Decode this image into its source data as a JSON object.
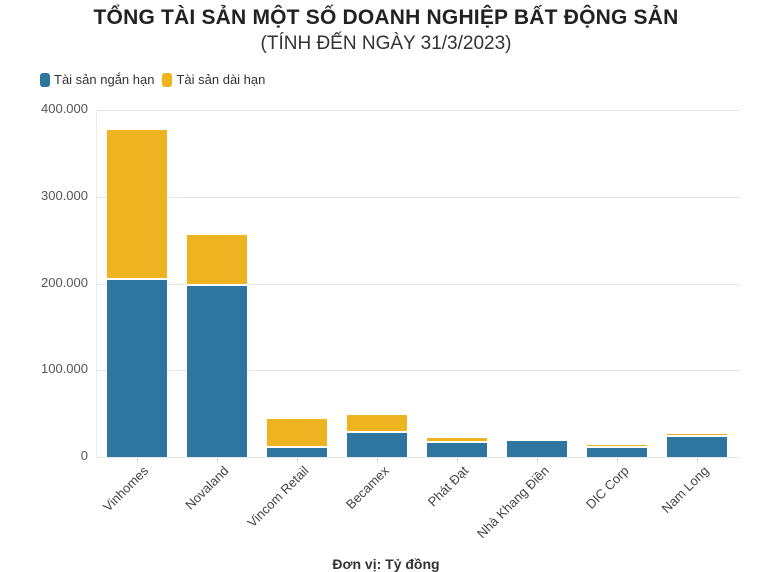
{
  "title": "TỔNG TÀI SẢN MỘT SỐ DOANH NGHIỆP BẤT ĐỘNG SẢN",
  "subtitle": "(TÍNH ĐẾN NGÀY 31/3/2023)",
  "legend": [
    {
      "label": "Tài sản ngắn hạn",
      "color": "#2e76a0"
    },
    {
      "label": "Tài sản dài hạn",
      "color": "#eeb321"
    }
  ],
  "unit_label": "Đơn vị: Tỷ đồng",
  "yaxis": {
    "ticks": [
      "0",
      "100.000",
      "200.000",
      "300.000",
      "400.000"
    ]
  },
  "chart_data": {
    "type": "bar",
    "stacked": true,
    "title": "TỔNG TÀI SẢN MỘT SỐ DOANH NGHIỆP BẤT ĐỘNG SẢN",
    "subtitle": "(TÍNH ĐẾN NGÀY 31/3/2023)",
    "xlabel": "",
    "ylabel": "",
    "unit": "Đơn vị: Tỷ đồng",
    "ylim": [
      0,
      400000
    ],
    "yticks": [
      0,
      100000,
      200000,
      300000,
      400000
    ],
    "grid": true,
    "legend_position": "top-left",
    "categories": [
      "Vinhomes",
      "Novaland",
      "Vincom Retail",
      "Becamex",
      "Phát Đạt",
      "Nhà Khang Điền",
      "DIC Corp",
      "Nam Long"
    ],
    "series": [
      {
        "name": "Tài sản ngắn hạn",
        "color": "#2e76a0",
        "values": [
          204500,
          197000,
          10700,
          27600,
          16500,
          18800,
          10000,
          22700
        ]
      },
      {
        "name": "Tài sản dài hạn",
        "color": "#eeb321",
        "values": [
          172500,
          59000,
          33300,
          20900,
          5500,
          1600,
          4200,
          4200
        ]
      }
    ]
  }
}
